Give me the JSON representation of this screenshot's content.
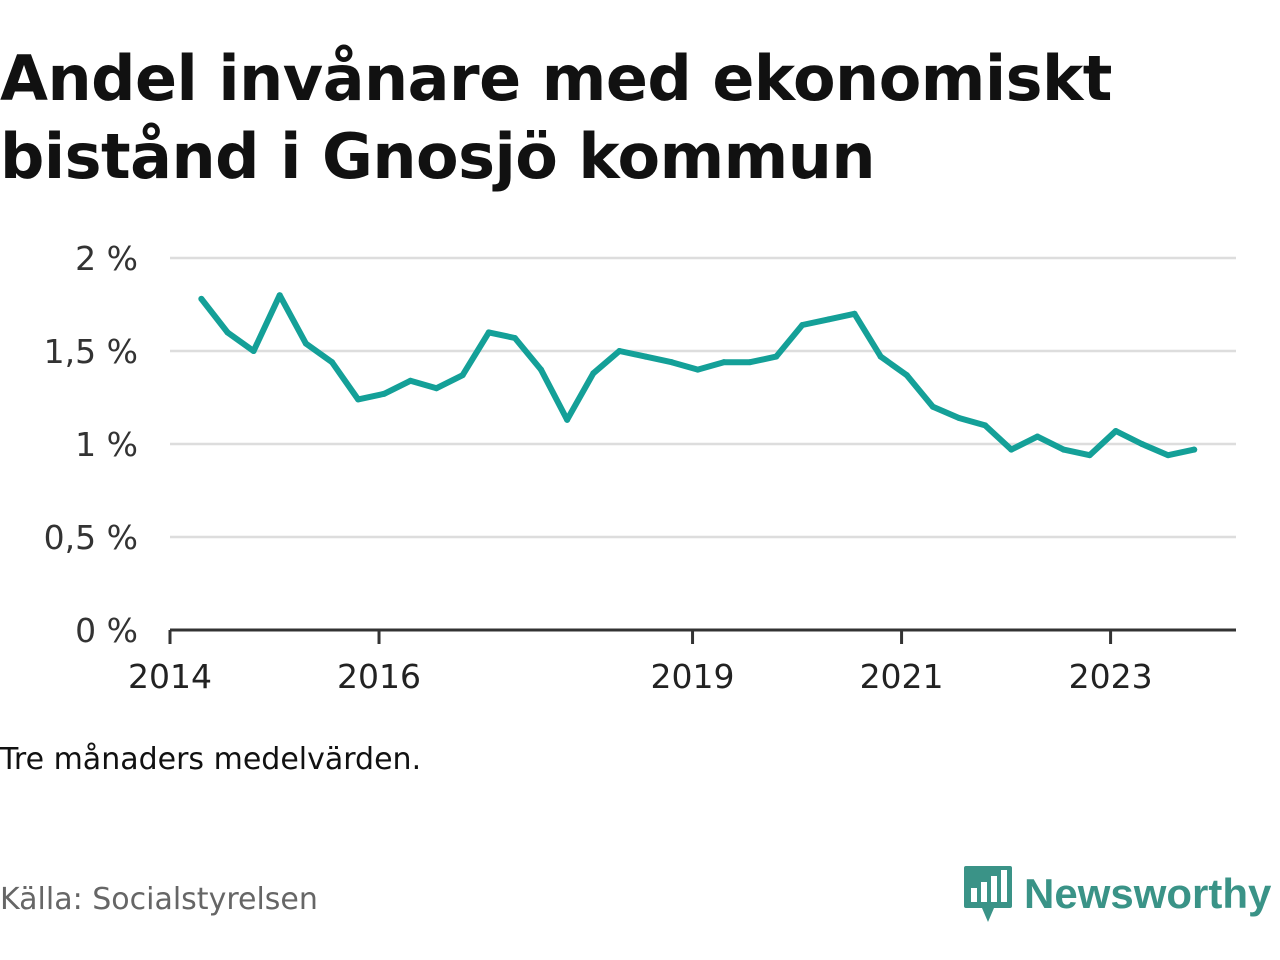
{
  "title": "Andel invånare med ekonomiskt bistånd i Gnosjö kommun",
  "note": "Tre månaders medelvärden.",
  "source": "Källa: Socialstyrelsen",
  "brand": {
    "name": "Newsworthy",
    "icon": "newsworthy-logo-icon",
    "color": "#3a9387"
  },
  "colors": {
    "line": "#14a098",
    "grid": "#dddddd",
    "axis": "#333333"
  },
  "chart_data": {
    "type": "line",
    "title": "Andel invånare med ekonomiskt bistånd i Gnosjö kommun",
    "xlabel": "",
    "ylabel": "",
    "ylim": [
      0,
      2
    ],
    "xlim": [
      2014.0,
      2024.2
    ],
    "grid": true,
    "y_ticks": [
      {
        "value": 0,
        "label": "0 %"
      },
      {
        "value": 0.5,
        "label": "0,5 %"
      },
      {
        "value": 1,
        "label": "1 %"
      },
      {
        "value": 1.5,
        "label": "1,5 %"
      },
      {
        "value": 2,
        "label": "2 %"
      }
    ],
    "x_ticks": [
      {
        "value": 2014.0,
        "label": "2014"
      },
      {
        "value": 2016.0,
        "label": "2016"
      },
      {
        "value": 2019.0,
        "label": "2019"
      },
      {
        "value": 2021.0,
        "label": "2021"
      },
      {
        "value": 2023.0,
        "label": "2023"
      }
    ],
    "series": [
      {
        "name": "Andel invånare med ekonomiskt bistånd",
        "x": [
          2014.3,
          2014.55,
          2014.8,
          2015.05,
          2015.3,
          2015.55,
          2015.8,
          2016.05,
          2016.3,
          2016.55,
          2016.8,
          2017.05,
          2017.3,
          2017.55,
          2017.8,
          2018.05,
          2018.3,
          2018.55,
          2018.8,
          2019.05,
          2019.3,
          2019.55,
          2019.8,
          2020.05,
          2020.3,
          2020.55,
          2020.8,
          2021.05,
          2021.3,
          2021.55,
          2021.8,
          2022.05,
          2022.3,
          2022.55,
          2022.8,
          2023.05,
          2023.3,
          2023.55,
          2023.8
        ],
        "values": [
          1.78,
          1.6,
          1.5,
          1.8,
          1.54,
          1.44,
          1.24,
          1.27,
          1.34,
          1.3,
          1.37,
          1.6,
          1.57,
          1.4,
          1.13,
          1.38,
          1.5,
          1.47,
          1.44,
          1.4,
          1.44,
          1.44,
          1.47,
          1.64,
          1.67,
          1.7,
          1.47,
          1.37,
          1.2,
          1.14,
          1.1,
          0.97,
          1.04,
          0.97,
          0.94,
          1.07,
          1.0,
          0.94,
          0.97
        ]
      }
    ]
  }
}
